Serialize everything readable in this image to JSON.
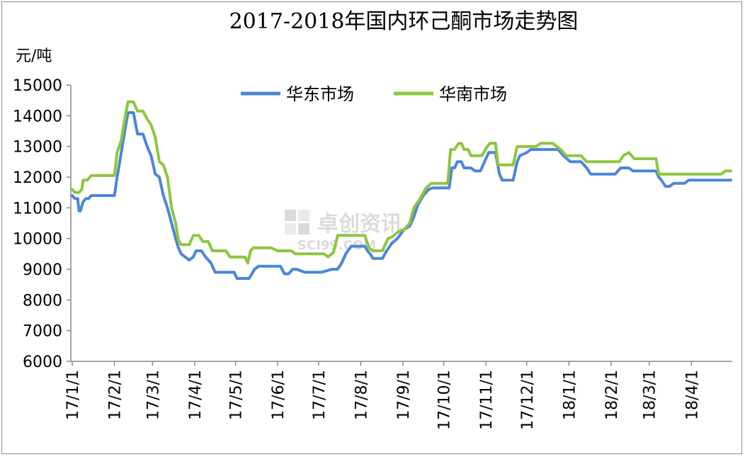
{
  "chart_data": {
    "type": "line",
    "title": "2017-2018年国内环己酮市场走势图",
    "ylabel": "元/吨",
    "xlabel": "",
    "ylim": [
      6000,
      15000
    ],
    "yticks": [
      6000,
      7000,
      8000,
      9000,
      10000,
      11000,
      12000,
      13000,
      14000,
      15000
    ],
    "x_ticks": [
      "17/1/1",
      "17/2/1",
      "17/3/1",
      "17/4/1",
      "17/5/1",
      "17/6/1",
      "17/7/1",
      "17/8/1",
      "17/9/1",
      "17/10/1",
      "17/11/1",
      "17/12/1",
      "18/1/1",
      "18/2/1",
      "18/3/1",
      "18/4/1"
    ],
    "x_range": [
      "17/1/1",
      "18/4/30"
    ],
    "legend_position": "top-center",
    "grid": false,
    "series": [
      {
        "name": "华东市场",
        "color": "#4a86d8",
        "points": [
          [
            "17/1/1",
            11400
          ],
          [
            "17/1/3",
            11300
          ],
          [
            "17/1/5",
            11300
          ],
          [
            "17/1/6",
            10900
          ],
          [
            "17/1/7",
            10900
          ],
          [
            "17/1/9",
            11200
          ],
          [
            "17/1/11",
            11300
          ],
          [
            "17/1/13",
            11300
          ],
          [
            "17/1/15",
            11400
          ],
          [
            "17/2/1",
            11400
          ],
          [
            "17/2/3",
            12000
          ],
          [
            "17/2/6",
            12800
          ],
          [
            "17/2/9",
            13600
          ],
          [
            "17/2/11",
            14100
          ],
          [
            "17/2/15",
            14100
          ],
          [
            "17/2/18",
            13400
          ],
          [
            "17/2/22",
            13400
          ],
          [
            "17/2/25",
            13000
          ],
          [
            "17/2/28",
            12700
          ],
          [
            "17/3/3",
            12100
          ],
          [
            "17/3/6",
            12000
          ],
          [
            "17/3/9",
            11400
          ],
          [
            "17/3/12",
            11000
          ],
          [
            "17/3/15",
            10500
          ],
          [
            "17/3/18",
            10000
          ],
          [
            "17/3/20",
            9700
          ],
          [
            "17/3/22",
            9500
          ],
          [
            "17/3/25",
            9400
          ],
          [
            "17/3/28",
            9300
          ],
          [
            "17/3/31",
            9400
          ],
          [
            "17/4/2",
            9600
          ],
          [
            "17/4/6",
            9600
          ],
          [
            "17/4/9",
            9400
          ],
          [
            "17/4/13",
            9200
          ],
          [
            "17/4/16",
            8900
          ],
          [
            "17/4/30",
            8900
          ],
          [
            "17/5/2",
            8700
          ],
          [
            "17/5/11",
            8700
          ],
          [
            "17/5/15",
            9000
          ],
          [
            "17/5/18",
            9100
          ],
          [
            "17/5/31",
            9100
          ],
          [
            "17/6/3",
            9100
          ],
          [
            "17/6/6",
            8850
          ],
          [
            "17/6/9",
            8850
          ],
          [
            "17/6/12",
            9000
          ],
          [
            "17/6/15",
            9000
          ],
          [
            "17/6/18",
            8950
          ],
          [
            "17/6/21",
            8900
          ],
          [
            "17/6/30",
            8900
          ],
          [
            "17/7/3",
            8900
          ],
          [
            "17/7/11",
            9000
          ],
          [
            "17/7/15",
            9000
          ],
          [
            "17/7/18",
            9200
          ],
          [
            "17/7/21",
            9500
          ],
          [
            "17/7/25",
            9750
          ],
          [
            "17/7/31",
            9750
          ],
          [
            "17/8/4",
            9750
          ],
          [
            "17/8/6",
            9600
          ],
          [
            "17/8/8",
            9500
          ],
          [
            "17/8/10",
            9350
          ],
          [
            "17/8/17",
            9350
          ],
          [
            "17/8/20",
            9600
          ],
          [
            "17/8/24",
            9850
          ],
          [
            "17/8/28",
            10000
          ],
          [
            "17/9/2",
            10300
          ],
          [
            "17/9/6",
            10400
          ],
          [
            "17/9/9",
            10700
          ],
          [
            "17/9/12",
            11100
          ],
          [
            "17/9/16",
            11400
          ],
          [
            "17/9/20",
            11600
          ],
          [
            "17/9/23",
            11650
          ],
          [
            "17/9/30",
            11650
          ],
          [
            "17/10/5",
            11650
          ],
          [
            "17/10/7",
            12300
          ],
          [
            "17/10/9",
            12300
          ],
          [
            "17/10/11",
            12500
          ],
          [
            "17/10/14",
            12500
          ],
          [
            "17/10/16",
            12300
          ],
          [
            "17/10/21",
            12300
          ],
          [
            "17/10/24",
            12200
          ],
          [
            "17/10/28",
            12200
          ],
          [
            "17/10/31",
            12500
          ],
          [
            "17/11/3",
            12800
          ],
          [
            "17/11/8",
            12800
          ],
          [
            "17/11/11",
            12100
          ],
          [
            "17/11/13",
            11900
          ],
          [
            "17/11/21",
            11900
          ],
          [
            "17/11/24",
            12500
          ],
          [
            "17/11/26",
            12700
          ],
          [
            "17/12/1",
            12800
          ],
          [
            "17/12/4",
            12900
          ],
          [
            "17/12/24",
            12900
          ],
          [
            "17/12/28",
            12700
          ],
          [
            "18/1/2",
            12500
          ],
          [
            "18/1/10",
            12500
          ],
          [
            "18/1/14",
            12300
          ],
          [
            "18/1/17",
            12100
          ],
          [
            "18/1/31",
            12100
          ],
          [
            "18/2/4",
            12100
          ],
          [
            "18/2/8",
            12300
          ],
          [
            "18/2/14",
            12300
          ],
          [
            "18/2/17",
            12200
          ],
          [
            "18/3/1",
            12200
          ],
          [
            "18/3/6",
            12200
          ],
          [
            "18/3/8",
            12000
          ],
          [
            "18/3/10",
            11900
          ],
          [
            "18/3/13",
            11700
          ],
          [
            "18/3/16",
            11700
          ],
          [
            "18/3/19",
            11800
          ],
          [
            "18/3/27",
            11800
          ],
          [
            "18/3/30",
            11900
          ],
          [
            "18/4/30",
            11900
          ]
        ]
      },
      {
        "name": "华南市场",
        "color": "#8cc63e",
        "points": [
          [
            "17/1/1",
            11600
          ],
          [
            "17/1/3",
            11500
          ],
          [
            "17/1/6",
            11500
          ],
          [
            "17/1/8",
            11600
          ],
          [
            "17/1/9",
            11900
          ],
          [
            "17/1/12",
            11900
          ],
          [
            "17/1/15",
            12050
          ],
          [
            "17/2/1",
            12050
          ],
          [
            "17/2/3",
            12800
          ],
          [
            "17/2/6",
            13200
          ],
          [
            "17/2/9",
            14000
          ],
          [
            "17/2/11",
            14450
          ],
          [
            "17/2/15",
            14450
          ],
          [
            "17/2/18",
            14150
          ],
          [
            "17/2/22",
            14150
          ],
          [
            "17/2/25",
            13900
          ],
          [
            "17/2/28",
            13700
          ],
          [
            "17/3/3",
            13300
          ],
          [
            "17/3/6",
            12500
          ],
          [
            "17/3/9",
            12400
          ],
          [
            "17/3/12",
            12000
          ],
          [
            "17/3/15",
            11000
          ],
          [
            "17/3/18",
            10500
          ],
          [
            "17/3/20",
            9950
          ],
          [
            "17/3/22",
            9800
          ],
          [
            "17/3/28",
            9800
          ],
          [
            "17/3/31",
            10100
          ],
          [
            "17/4/4",
            10100
          ],
          [
            "17/4/7",
            9900
          ],
          [
            "17/4/11",
            9900
          ],
          [
            "17/4/14",
            9600
          ],
          [
            "17/4/24",
            9600
          ],
          [
            "17/4/27",
            9400
          ],
          [
            "17/5/8",
            9400
          ],
          [
            "17/5/10",
            9200
          ],
          [
            "17/5/12",
            9600
          ],
          [
            "17/5/14",
            9700
          ],
          [
            "17/5/27",
            9700
          ],
          [
            "17/6/1",
            9600
          ],
          [
            "17/6/11",
            9600
          ],
          [
            "17/6/14",
            9500
          ],
          [
            "17/6/30",
            9500
          ],
          [
            "17/7/3",
            9500
          ],
          [
            "17/7/5",
            9500
          ],
          [
            "17/7/8",
            9400
          ],
          [
            "17/7/12",
            9550
          ],
          [
            "17/7/15",
            10100
          ],
          [
            "17/7/31",
            10100
          ],
          [
            "17/8/4",
            10100
          ],
          [
            "17/8/7",
            9700
          ],
          [
            "17/8/10",
            9600
          ],
          [
            "17/8/17",
            9600
          ],
          [
            "17/8/21",
            10000
          ],
          [
            "17/8/24",
            10050
          ],
          [
            "17/8/28",
            10200
          ],
          [
            "17/9/2",
            10300
          ],
          [
            "17/9/6",
            10500
          ],
          [
            "17/9/9",
            11000
          ],
          [
            "17/9/13",
            11250
          ],
          [
            "17/9/18",
            11650
          ],
          [
            "17/9/22",
            11800
          ],
          [
            "17/9/30",
            11800
          ],
          [
            "17/10/4",
            11800
          ],
          [
            "17/10/6",
            12900
          ],
          [
            "17/10/9",
            12900
          ],
          [
            "17/10/12",
            13100
          ],
          [
            "17/10/14",
            13100
          ],
          [
            "17/10/16",
            12900
          ],
          [
            "17/10/19",
            12900
          ],
          [
            "17/10/21",
            12700
          ],
          [
            "17/10/29",
            12700
          ],
          [
            "17/11/2",
            13000
          ],
          [
            "17/11/4",
            13100
          ],
          [
            "17/11/8",
            13100
          ],
          [
            "17/11/10",
            12400
          ],
          [
            "17/11/21",
            12400
          ],
          [
            "17/11/24",
            13000
          ],
          [
            "17/12/8",
            13000
          ],
          [
            "17/12/11",
            13100
          ],
          [
            "17/12/20",
            13100
          ],
          [
            "17/12/26",
            12900
          ],
          [
            "17/12/30",
            12700
          ],
          [
            "18/1/10",
            12700
          ],
          [
            "18/1/14",
            12500
          ],
          [
            "18/2/7",
            12500
          ],
          [
            "18/2/10",
            12700
          ],
          [
            "18/2/14",
            12800
          ],
          [
            "18/2/18",
            12600
          ],
          [
            "18/3/1",
            12600
          ],
          [
            "18/3/6",
            12600
          ],
          [
            "18/3/8",
            12100
          ],
          [
            "18/4/23",
            12100
          ],
          [
            "18/4/26",
            12200
          ],
          [
            "18/4/30",
            12200
          ]
        ]
      }
    ]
  },
  "watermark": {
    "text": "卓创资讯",
    "sub": "SCI99.COM"
  }
}
